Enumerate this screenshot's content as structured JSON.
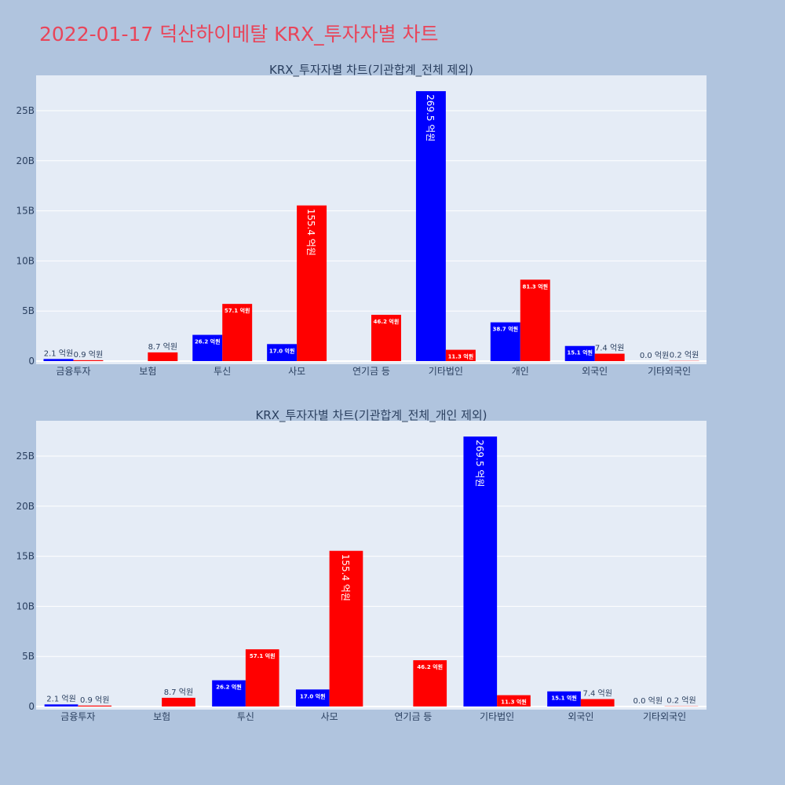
{
  "page": {
    "title": "2022-01-17 덕산하이메탈 KRX_투자자별 차트"
  },
  "colors": {
    "buy": "#0000ff",
    "sell": "#ff0000",
    "plot_bg": "#e5ecf6",
    "page_bg": "#b0c4de",
    "title": "#e8455a",
    "grid": "#ffffff"
  },
  "chart_data": [
    {
      "type": "bar",
      "title": "KRX_투자자별 차트(기관합계_전체 제외)",
      "categories": [
        "금융투자",
        "보험",
        "투신",
        "사모",
        "연기금 등",
        "기타법인",
        "개인",
        "외국인",
        "기타외국인"
      ],
      "series": [
        {
          "color": "#0000ff",
          "values": [
            210000000,
            0,
            2620000000,
            1700000000,
            0,
            26950000000,
            3870000000,
            1510000000,
            0
          ],
          "labels": [
            "2.1 억원",
            "",
            "26.2 억원",
            "17.0 억원",
            "",
            "269.5 억원",
            "38.7 억원",
            "15.1 억원",
            "0.0 억원"
          ]
        },
        {
          "color": "#ff0000",
          "values": [
            90000000,
            870000000,
            5710000000,
            15540000000,
            4620000000,
            1130000000,
            8130000000,
            740000000,
            20000000
          ],
          "labels": [
            "0.9 억원",
            "8.7 억원",
            "57.1 억원",
            "155.4 억원",
            "46.2 억원",
            "11.3 억원",
            "81.3 억원",
            "7.4 억원",
            "0.2 억원"
          ]
        }
      ],
      "ylim": [
        0,
        28000000000
      ],
      "yticks": [
        0,
        5000000000,
        10000000000,
        15000000000,
        20000000000,
        25000000000
      ],
      "ytick_labels": [
        "0",
        "5B",
        "10B",
        "15B",
        "20B",
        "25B"
      ],
      "grid": true
    },
    {
      "type": "bar",
      "title": "KRX_투자자별 차트(기관합계_전체_개인 제외)",
      "categories": [
        "금융투자",
        "보험",
        "투신",
        "사모",
        "연기금 등",
        "기타법인",
        "외국인",
        "기타외국인"
      ],
      "series": [
        {
          "color": "#0000ff",
          "values": [
            210000000,
            0,
            2620000000,
            1700000000,
            0,
            26950000000,
            1510000000,
            0
          ],
          "labels": [
            "2.1 억원",
            "",
            "26.2 억원",
            "17.0 억원",
            "",
            "269.5 억원",
            "15.1 억원",
            "0.0 억원"
          ]
        },
        {
          "color": "#ff0000",
          "values": [
            90000000,
            870000000,
            5710000000,
            15540000000,
            4620000000,
            1130000000,
            740000000,
            20000000
          ],
          "labels": [
            "0.9 억원",
            "8.7 억원",
            "57.1 억원",
            "155.4 억원",
            "46.2 억원",
            "11.3 억원",
            "7.4 억원",
            "0.2 억원"
          ]
        }
      ],
      "ylim": [
        0,
        28000000000
      ],
      "yticks": [
        0,
        5000000000,
        10000000000,
        15000000000,
        20000000000,
        25000000000
      ],
      "ytick_labels": [
        "0",
        "5B",
        "10B",
        "15B",
        "20B",
        "25B"
      ],
      "grid": true
    }
  ]
}
